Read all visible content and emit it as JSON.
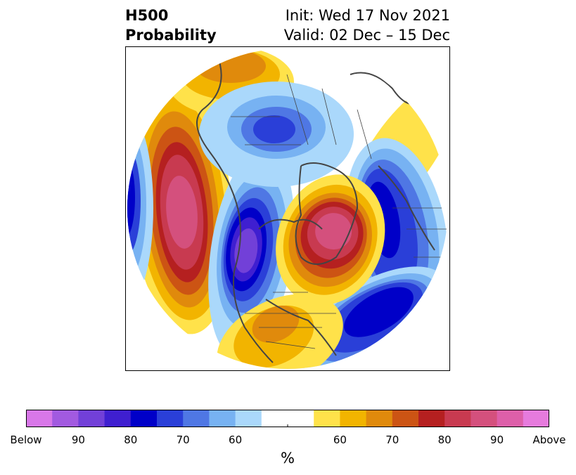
{
  "title": {
    "left_line1": "H500",
    "left_line2": "Probability",
    "right_line1": "Init: Wed 17 Nov 2021",
    "right_line2": "Valid: 02 Dec – 15 Dec"
  },
  "colorbar": {
    "unit": "%",
    "colors": [
      "#d877e8",
      "#a25ae0",
      "#7240d8",
      "#3f1fd0",
      "#0000c8",
      "#2a3fd8",
      "#4f77e4",
      "#77b2f2",
      "#aad8fb",
      "#ffffff",
      "#ffffff",
      "#ffe24a",
      "#f2b400",
      "#e08a0c",
      "#cc5414",
      "#b52020",
      "#c83a50",
      "#d4507d",
      "#dd5fa9",
      "#e67bdd"
    ],
    "tick_labels": [
      "Below",
      "90",
      "80",
      "70",
      "60",
      "60",
      "70",
      "80",
      "90",
      "Above"
    ]
  },
  "map": {
    "projection": "north-polar-stereographic",
    "anomalies": [
      {
        "name": "north-pacific-positive",
        "sign": "above",
        "peak_probability": 90
      },
      {
        "name": "western-north-america-negative",
        "sign": "below",
        "peak_probability": 90
      },
      {
        "name": "greenland-positive",
        "sign": "above",
        "peak_probability": 90
      },
      {
        "name": "central-atlantic-negative",
        "sign": "below",
        "peak_probability": 80
      },
      {
        "name": "eastern-north-america-positive",
        "sign": "above",
        "peak_probability": 70
      },
      {
        "name": "siberia-negative",
        "sign": "below",
        "peak_probability": 75
      },
      {
        "name": "east-asia-negative",
        "sign": "below",
        "peak_probability": 80
      },
      {
        "name": "western-russia-positive",
        "sign": "above",
        "peak_probability": 60
      }
    ]
  }
}
